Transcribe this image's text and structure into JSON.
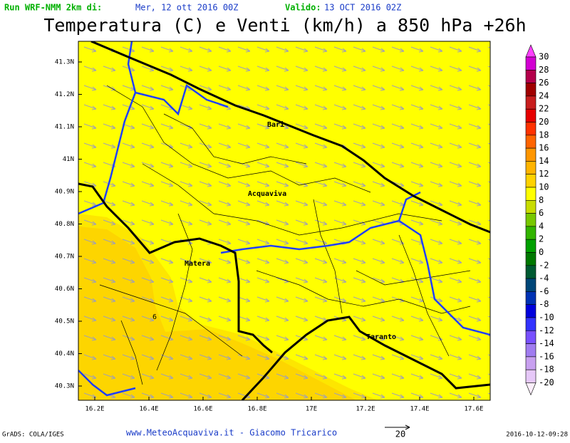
{
  "header": {
    "run_label": "Run WRF-NMM 2km di:",
    "run_date": "Mer, 12 ott 2016 00Z",
    "valid_label": "Valido:",
    "valid_date": "13 OCT 2016 02Z",
    "title": "Temperatura (C) e Venti (km/h) a 850 hPa +26h"
  },
  "map": {
    "lat_labels": [
      "41.3N",
      "41.2N",
      "41.1N",
      "41N",
      "40.9N",
      "40.8N",
      "40.7N",
      "40.6N",
      "40.5N",
      "40.4N",
      "40.3N"
    ],
    "lon_labels": [
      "16.2E",
      "16.4E",
      "16.6E",
      "16.8E",
      "17E",
      "17.2E",
      "17.4E",
      "17.6E"
    ],
    "places": [
      "Bari",
      "Acquaviva",
      "Matera",
      "Taranto"
    ],
    "contour_label": "6"
  },
  "legend": {
    "labels": [
      30,
      28,
      26,
      24,
      22,
      20,
      18,
      16,
      14,
      12,
      10,
      8,
      6,
      4,
      2,
      0,
      -2,
      -4,
      -6,
      -8,
      -10,
      -12,
      -14,
      -16,
      -18,
      -20
    ],
    "colors": [
      "#ff40ff",
      "#d200d2",
      "#b4004b",
      "#a00000",
      "#c81e1e",
      "#e60000",
      "#ff3200",
      "#ff6400",
      "#ff9600",
      "#ffb400",
      "#ffd200",
      "#ffff00",
      "#c8dc00",
      "#78c800",
      "#32b400",
      "#00a000",
      "#007800",
      "#005a32",
      "#004678",
      "#0032b4",
      "#0000dc",
      "#3232ff",
      "#7850ff",
      "#a07cf0",
      "#c8a0f0",
      "#e6c8f8",
      "#fbeefb"
    ]
  },
  "footer": {
    "software": "GrADS: COLA/IGES",
    "credit": "www.MeteoAcquaviva.it - Giacomo Tricarico",
    "vector_scale": "20",
    "timestamp": "2016-10-12-09:28"
  }
}
